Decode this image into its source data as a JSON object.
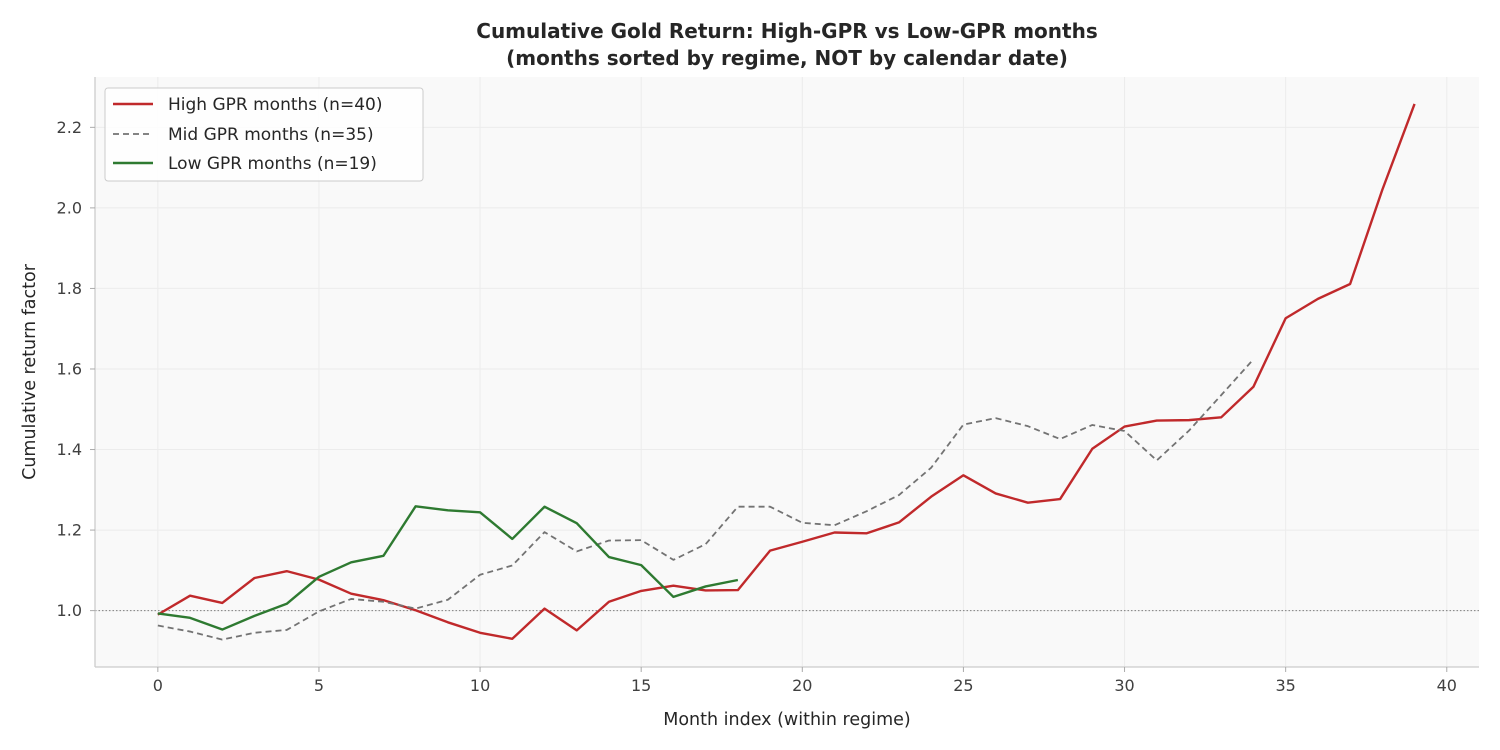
{
  "chart_data": {
    "type": "line",
    "title": "Cumulative Gold Return: High-GPR vs Low-GPR months",
    "subtitle": "(months sorted by regime, NOT by calendar date)",
    "xlabel": "Month index (within regime)",
    "ylabel": "Cumulative return factor",
    "xlim": [
      -1.95,
      41
    ],
    "ylim": [
      0.86,
      2.325
    ],
    "xticks": [
      0,
      5,
      10,
      15,
      20,
      25,
      30,
      35,
      40
    ],
    "yticks": [
      1.0,
      1.2,
      1.4,
      1.6,
      1.8,
      2.0,
      2.2
    ],
    "ytick_labels": [
      "1.0",
      "1.2",
      "1.4",
      "1.6",
      "1.8",
      "2.0",
      "2.2"
    ],
    "grid": true,
    "reference_line": {
      "y": 1.0,
      "style": "dotted",
      "color": "#808080"
    },
    "legend_position": "upper-left",
    "colors": {
      "background": "#f9f9f9",
      "high": "#c0292b",
      "mid": "#737373",
      "low": "#2e7a31"
    },
    "series": [
      {
        "key": "high",
        "name": "High GPR months (n=40)",
        "style": "solid",
        "x": [
          0,
          1,
          2,
          3,
          4,
          5,
          6,
          7,
          8,
          9,
          10,
          11,
          12,
          13,
          14,
          15,
          16,
          17,
          18,
          19,
          20,
          21,
          22,
          23,
          24,
          25,
          26,
          27,
          28,
          29,
          30,
          31,
          32,
          33,
          34,
          35,
          36,
          37,
          38,
          39
        ],
        "values": [
          0.99,
          1.037,
          1.019,
          1.081,
          1.098,
          1.077,
          1.042,
          1.026,
          1.001,
          0.971,
          0.945,
          0.93,
          1.005,
          0.951,
          1.022,
          1.049,
          1.062,
          1.05,
          1.051,
          1.149,
          1.171,
          1.194,
          1.192,
          1.219,
          1.283,
          1.336,
          1.291,
          1.268,
          1.277,
          1.402,
          1.457,
          1.472,
          1.473,
          1.48,
          1.556,
          1.726,
          1.774,
          1.811,
          2.045,
          2.258
        ]
      },
      {
        "key": "mid",
        "name": "Mid GPR months (n=35)",
        "style": "dashed",
        "x": [
          0,
          1,
          2,
          3,
          4,
          5,
          6,
          7,
          8,
          9,
          10,
          11,
          12,
          13,
          14,
          15,
          16,
          17,
          18,
          19,
          20,
          21,
          22,
          23,
          24,
          25,
          26,
          27,
          28,
          29,
          30,
          31,
          32,
          33,
          34
        ],
        "values": [
          0.963,
          0.948,
          0.928,
          0.945,
          0.952,
          0.998,
          1.029,
          1.022,
          1.005,
          1.027,
          1.089,
          1.112,
          1.195,
          1.147,
          1.174,
          1.175,
          1.126,
          1.165,
          1.258,
          1.258,
          1.218,
          1.212,
          1.247,
          1.287,
          1.355,
          1.462,
          1.478,
          1.458,
          1.426,
          1.461,
          1.446,
          1.373,
          1.447,
          1.535,
          1.624
        ]
      },
      {
        "key": "low",
        "name": "Low GPR months (n=19)",
        "style": "solid",
        "x": [
          0,
          1,
          2,
          3,
          4,
          5,
          6,
          7,
          8,
          9,
          10,
          11,
          12,
          13,
          14,
          15,
          16,
          17,
          18
        ],
        "values": [
          0.993,
          0.982,
          0.953,
          0.987,
          1.017,
          1.084,
          1.12,
          1.136,
          1.259,
          1.249,
          1.244,
          1.178,
          1.258,
          1.217,
          1.133,
          1.113,
          1.034,
          1.06,
          1.076
        ]
      }
    ]
  }
}
